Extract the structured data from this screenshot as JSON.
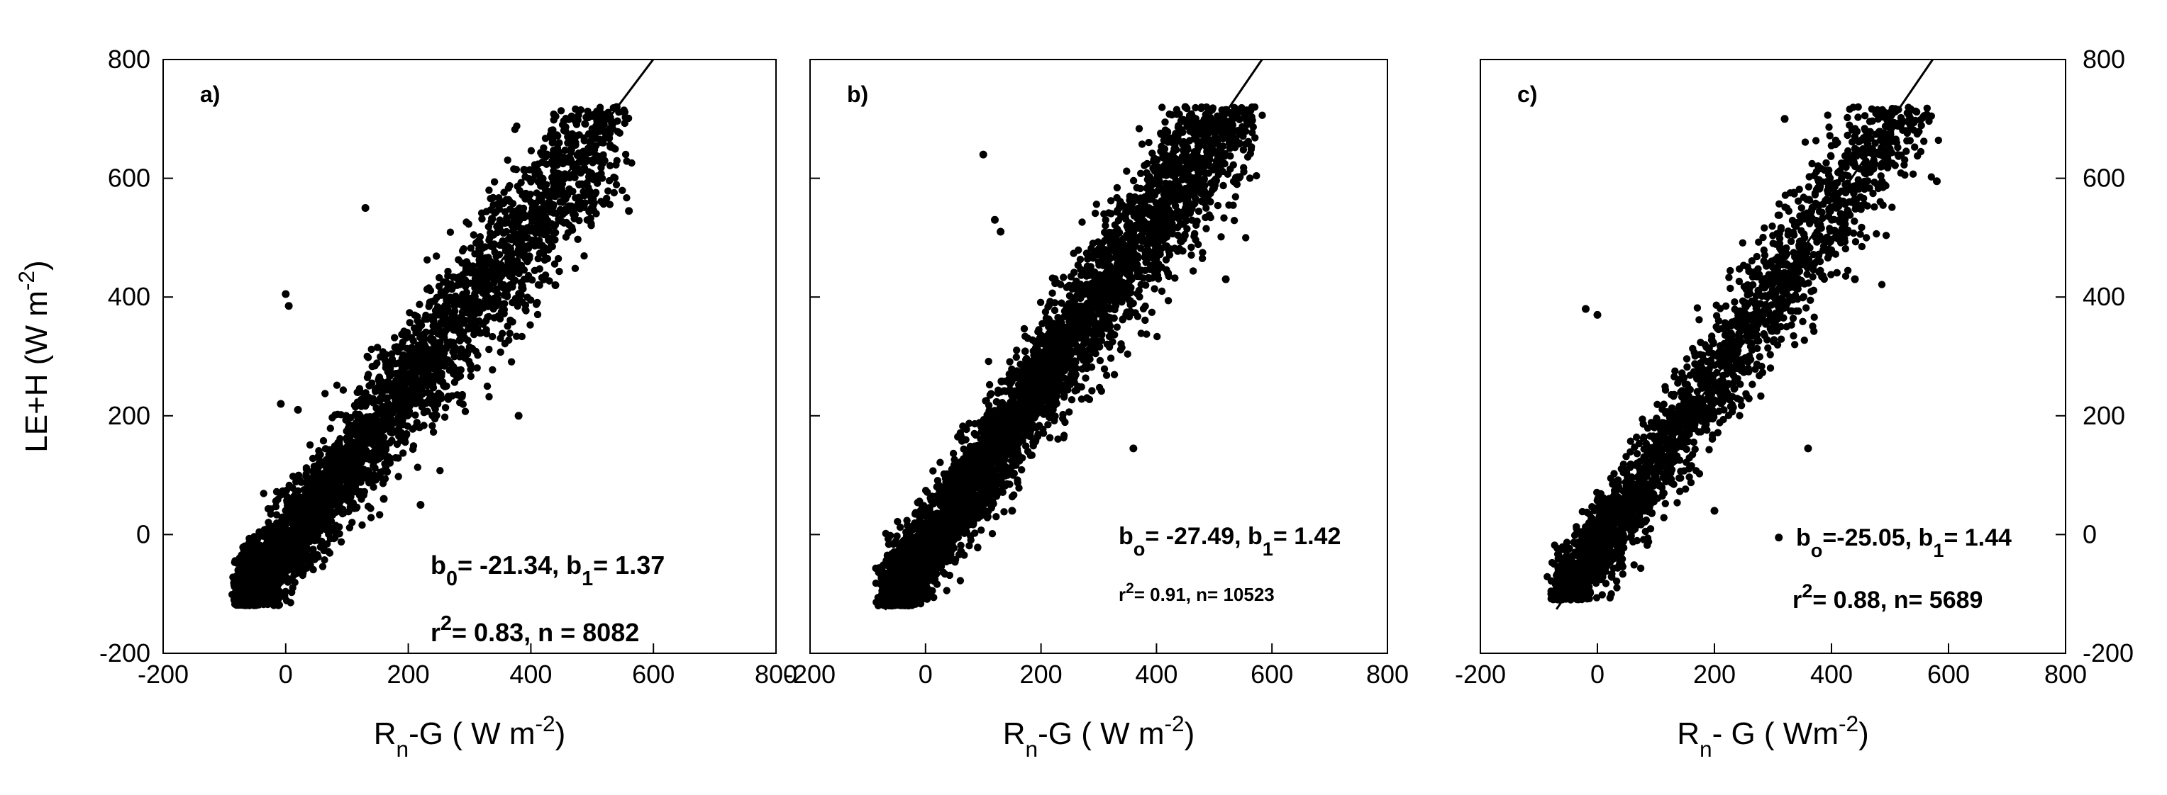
{
  "chart_data": [
    {
      "type": "scatter",
      "panel_label": "a)",
      "xlabel_main": "R",
      "xlabel_sub": "n",
      "xlabel_rest": "-G ( W m",
      "xlabel_sup": "-2",
      "xlabel_end": ")",
      "ylabel": "LE+H (W m",
      "ylabel_sup": "-2",
      "ylabel_end": ")",
      "xlim": [
        -200,
        800
      ],
      "ylim": [
        -200,
        800
      ],
      "xticks": [
        "-200",
        "0",
        "200",
        "400",
        "600",
        "800"
      ],
      "yticks": [
        "-200",
        "0",
        "200",
        "400",
        "600",
        "800"
      ],
      "fit": {
        "b0": -21.34,
        "b1": 1.37
      },
      "fit_line_x": [
        -70,
        620
      ],
      "annotation_line1": {
        "a": "b",
        "a_sub": "0",
        "b": "= -21.34, b",
        "b_sub": "1",
        "c": "= 1.37"
      },
      "annotation_line2": {
        "a": "r",
        "a_sup": "2",
        "b": "= 0.83, n = 8082"
      },
      "cloud": {
        "n_points": 8082,
        "x_range": [
          -75,
          560
        ],
        "y_range": [
          -120,
          720
        ],
        "core_spread": 42
      },
      "outliers": [
        [
          0,
          405
        ],
        [
          5,
          385
        ],
        [
          20,
          210
        ],
        [
          -8,
          220
        ],
        [
          130,
          550
        ],
        [
          440,
          420
        ],
        [
          520,
          560
        ],
        [
          560,
          545
        ],
        [
          160,
          60
        ],
        [
          220,
          50
        ],
        [
          380,
          200
        ],
        [
          470,
          700
        ],
        [
          500,
          705
        ],
        [
          540,
          720
        ]
      ]
    },
    {
      "type": "scatter",
      "panel_label": "b)",
      "xlabel_main": "R",
      "xlabel_sub": "n",
      "xlabel_rest": "-G ( W m",
      "xlabel_sup": "-2",
      "xlabel_end": ")",
      "xlim": [
        -200,
        800
      ],
      "ylim": [
        -200,
        800
      ],
      "xticks": [
        "-200",
        "0",
        "200",
        "400",
        "600",
        "800"
      ],
      "fit": {
        "b0": -27.49,
        "b1": 1.42
      },
      "fit_line_x": [
        -70,
        630
      ],
      "annotation_line1": {
        "a": "b",
        "a_sub": "o",
        "b": "= -27.49, b",
        "b_sub": "1",
        "c": "= 1.42"
      },
      "annotation_line2": {
        "a": "r",
        "a_sup": "2",
        "b": "= 0.91, n= 10523"
      },
      "cloud": {
        "n_points": 10523,
        "x_range": [
          -70,
          570
        ],
        "y_range": [
          -120,
          720
        ],
        "core_spread": 38
      },
      "outliers": [
        [
          100,
          640
        ],
        [
          120,
          530
        ],
        [
          130,
          510
        ],
        [
          360,
          145
        ],
        [
          420,
          440
        ],
        [
          520,
          430
        ],
        [
          90,
          100
        ],
        [
          150,
          40
        ],
        [
          450,
          720
        ],
        [
          520,
          715
        ]
      ]
    },
    {
      "type": "scatter",
      "panel_label": "c)",
      "xlabel_main": "R",
      "xlabel_sub": "n",
      "xlabel_rest": "- G ( Wm",
      "xlabel_sup": "-2",
      "xlabel_end": ")",
      "xlim": [
        -200,
        800
      ],
      "ylim": [
        -200,
        800
      ],
      "xticks": [
        "-200",
        "0",
        "200",
        "400",
        "600",
        "800"
      ],
      "yticks": [
        "-200",
        "0",
        "200",
        "400",
        "600",
        "800"
      ],
      "fit": {
        "b0": -25.05,
        "b1": 1.44
      },
      "fit_line_x": [
        -70,
        620
      ],
      "annotation_line1": {
        "a": "b",
        "a_sub": "o",
        "b": "=-25.05, b",
        "b_sub": "1",
        "c": "= 1.44"
      },
      "annotation_line2": {
        "a": "r",
        "a_sup": "2",
        "b": "= 0.88, n= 5689"
      },
      "cloud": {
        "n_points": 5689,
        "x_range": [
          -70,
          580
        ],
        "y_range": [
          -110,
          720
        ],
        "core_spread": 40
      },
      "outliers": [
        [
          -20,
          380
        ],
        [
          0,
          370
        ],
        [
          320,
          700
        ],
        [
          360,
          145
        ],
        [
          440,
          430
        ],
        [
          580,
          595
        ],
        [
          310,
          -5
        ],
        [
          80,
          50
        ],
        [
          200,
          40
        ]
      ]
    }
  ]
}
